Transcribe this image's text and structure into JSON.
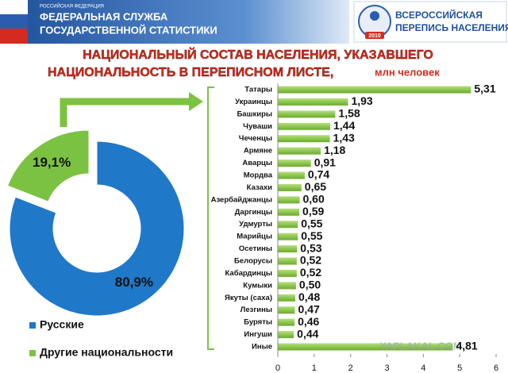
{
  "header": {
    "country": "РОССИЙСКАЯ ФЕДЕРАЦИЯ",
    "agency": [
      "ФЕДЕРАЛЬНАЯ СЛУЖБА",
      "ГОСУДАРСТВЕННОЙ СТАТИСТИКИ"
    ],
    "logo": [
      "ВСЕРОССИЙСКАЯ",
      "ПЕРЕПИСЬ НАСЕЛЕНИЯ"
    ],
    "logo_year": "2010"
  },
  "watermark": "YAPLAKAL.COM",
  "chart_data": [
    {
      "type": "donut",
      "series": [
        {
          "name": "Русские",
          "color": "#1f78c8",
          "values": [
            80.9
          ],
          "value_labels": [
            "80,9%"
          ]
        },
        {
          "name": "Другие национальности",
          "color": "#7cc242",
          "values": [
            19.1
          ],
          "value_labels": [
            "19,1%"
          ]
        }
      ]
    },
    {
      "type": "bar",
      "orientation": "horizontal",
      "title": [
        "НАЦИОНАЛЬНЫЙ СОСТАВ НАСЕЛЕНИЯ, УКАЗАВШЕГО",
        "НАЦИОНАЛЬНОСТЬ В ПЕРЕПИСНОМ ЛИСТЕ,"
      ],
      "unit": "млн человек",
      "categories": [
        "Татары",
        "Украинцы",
        "Башкиры",
        "Чуваши",
        "Чеченцы",
        "Армяне",
        "Аварцы",
        "Мордва",
        "Казахи",
        "Азербайджанцы",
        "Даргинцы",
        "Удмурты",
        "Марийцы",
        "Осетины",
        "Белорусы",
        "Кабардинцы",
        "Кумыки",
        "Якуты (саха)",
        "Лезгины",
        "Буряты",
        "Ингуши",
        "Иные"
      ],
      "values": [
        5.31,
        1.93,
        1.58,
        1.44,
        1.43,
        1.18,
        0.91,
        0.74,
        0.65,
        0.6,
        0.59,
        0.55,
        0.55,
        0.53,
        0.52,
        0.52,
        0.5,
        0.48,
        0.47,
        0.46,
        0.44,
        4.81
      ],
      "value_labels": [
        "5,31",
        "1,93",
        "1,58",
        "1,44",
        "1,43",
        "1,18",
        "0,91",
        "0,74",
        "0,65",
        "0,60",
        "0,59",
        "0,55",
        "0,55",
        "0,53",
        "0,52",
        "0,52",
        "0,50",
        "0,48",
        "0,47",
        "0,46",
        "0,44",
        "4,81"
      ],
      "color": "#8cc63f",
      "xlim": [
        0,
        6
      ],
      "xticks": [
        0,
        1,
        2,
        3,
        4,
        5,
        6
      ]
    }
  ]
}
